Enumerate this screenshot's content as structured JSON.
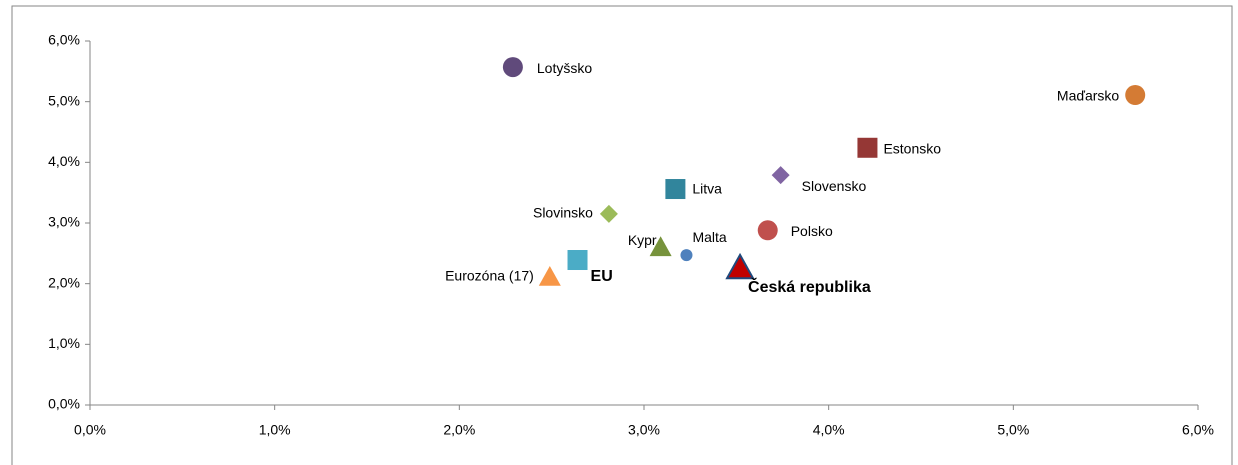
{
  "chart_data": {
    "type": "scatter",
    "xlim": [
      0,
      6
    ],
    "ylim": [
      0,
      6
    ],
    "xticks": [
      {
        "value": 0,
        "label": "0,0%"
      },
      {
        "value": 1,
        "label": "1,0%"
      },
      {
        "value": 2,
        "label": "2,0%"
      },
      {
        "value": 3,
        "label": "3,0%"
      },
      {
        "value": 4,
        "label": "4,0%"
      },
      {
        "value": 5,
        "label": "5,0%"
      },
      {
        "value": 6,
        "label": "6,0%"
      }
    ],
    "yticks": [
      {
        "value": 0,
        "label": "0,0%"
      },
      {
        "value": 1,
        "label": "1,0%"
      },
      {
        "value": 2,
        "label": "2,0%"
      },
      {
        "value": 3,
        "label": "3,0%"
      },
      {
        "value": 4,
        "label": "4,0%"
      },
      {
        "value": 5,
        "label": "5,0%"
      },
      {
        "value": 6,
        "label": "6,0%"
      }
    ],
    "grid": false,
    "points": [
      {
        "name": "Lotyšsko",
        "marker": "circle",
        "color": "#604a7b",
        "x": 2.29,
        "y": 5.57
      },
      {
        "name": "Maďarsko",
        "marker": "circle",
        "color": "#d47b34",
        "x": 5.66,
        "y": 5.11
      },
      {
        "name": "Estonsko",
        "marker": "square",
        "color": "#953735",
        "x": 4.21,
        "y": 4.24
      },
      {
        "name": "Slovensko",
        "marker": "diamond",
        "color": "#8064a2",
        "x": 3.74,
        "y": 3.79
      },
      {
        "name": "Litva",
        "marker": "square",
        "color": "#31859c",
        "x": 3.17,
        "y": 3.56
      },
      {
        "name": "Slovinsko",
        "marker": "diamond",
        "color": "#9bbb59",
        "x": 2.81,
        "y": 3.15
      },
      {
        "name": "Polsko",
        "marker": "circle",
        "color": "#c0504d",
        "x": 3.67,
        "y": 2.88
      },
      {
        "name": "Malta",
        "marker": "circle",
        "color": "#4f81bd",
        "x": 3.23,
        "y": 2.47
      },
      {
        "name": "Kypr",
        "marker": "triangle",
        "color": "#77933c",
        "x": 3.09,
        "y": 2.6
      },
      {
        "name": "EU",
        "marker": "square",
        "color": "#4bacc6",
        "x": 2.64,
        "y": 2.39
      },
      {
        "name": "Eurozóna (17)",
        "marker": "triangle",
        "color": "#f79646",
        "x": 2.49,
        "y": 2.11
      },
      {
        "name": "Česká republika",
        "marker": "triangle",
        "color": "#c00000",
        "edgecolor": "#1f497d",
        "x": 3.52,
        "y": 2.26
      }
    ]
  }
}
